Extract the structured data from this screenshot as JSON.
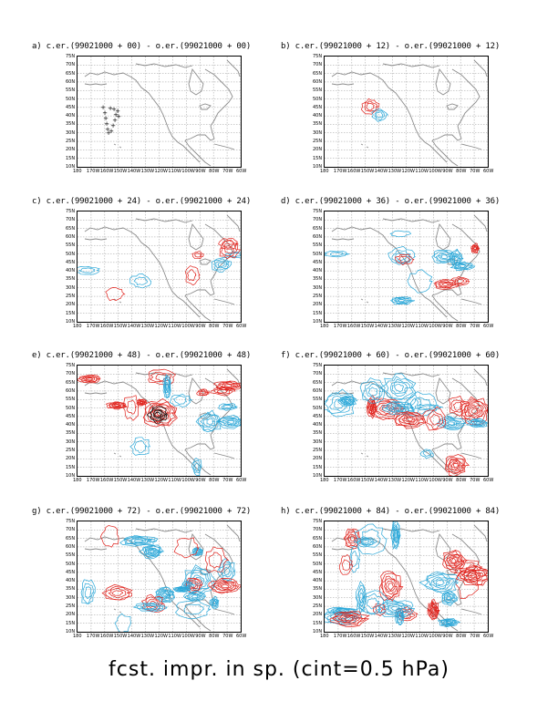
{
  "caption": "fcst. impr. in sp. (cint=0.5 hPa)",
  "colors": {
    "positive": "#e0201a",
    "negative": "#2aa7d8",
    "coast": "#8c8c8c",
    "grid": "#9a9a9a",
    "track": "#000000"
  },
  "lat_labels": [
    "75N",
    "70N",
    "65N",
    "60N",
    "55N",
    "50N",
    "45N",
    "40N",
    "35N",
    "30N",
    "25N",
    "20N",
    "15N",
    "10N"
  ],
  "lon_labels": [
    "180",
    "170W",
    "160W",
    "150W",
    "140W",
    "130W",
    "120W",
    "110W",
    "100W",
    "90W",
    "80W",
    "70W",
    "60W"
  ],
  "panels": [
    {
      "title": "a) c.er.(99021000 + 00) - o.er.(99021000 + 00)",
      "level": 0
    },
    {
      "title": "b) c.er.(99021000 + 12) - o.er.(99021000 + 12)",
      "level": 1
    },
    {
      "title": "c) c.er.(99021000 + 24) - o.er.(99021000 + 24)",
      "level": 2
    },
    {
      "title": "d) c.er.(99021000 + 36) - o.er.(99021000 + 36)",
      "level": 3
    },
    {
      "title": "e) c.er.(99021000 + 48) - o.er.(99021000 + 48)",
      "level": 4
    },
    {
      "title": "f) c.er.(99021000 + 60) - o.er.(99021000 + 60)",
      "level": 5
    },
    {
      "title": "g) c.er.(99021000 + 72) - o.er.(99021000 + 72)",
      "level": 6
    },
    {
      "title": "h) c.er.(99021000 + 84) - o.er.(99021000 + 84)",
      "level": 7
    }
  ]
}
